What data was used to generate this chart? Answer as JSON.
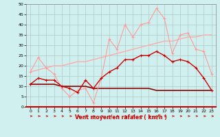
{
  "x": [
    0,
    1,
    2,
    3,
    4,
    5,
    6,
    7,
    8,
    9,
    10,
    11,
    12,
    13,
    14,
    15,
    16,
    17,
    18,
    19,
    20,
    21,
    22,
    23
  ],
  "line1_y": [
    17,
    24,
    19,
    16,
    9,
    5,
    8,
    9,
    2,
    14,
    33,
    28,
    40,
    34,
    40,
    41,
    48,
    43,
    26,
    35,
    36,
    28,
    27,
    16
  ],
  "line2_y": [
    11,
    14,
    13,
    13,
    10,
    9,
    7,
    13,
    9,
    14,
    17,
    19,
    23,
    23,
    25,
    25,
    27,
    25,
    22,
    23,
    22,
    19,
    14,
    8
  ],
  "line3_slope_y": [
    17,
    18,
    19,
    20,
    20,
    21,
    22,
    22,
    23,
    24,
    25,
    26,
    27,
    28,
    29,
    30,
    31,
    32,
    32,
    33,
    34,
    34,
    35,
    35
  ],
  "line4_slope_y": [
    11,
    11,
    11,
    11,
    10,
    10,
    10,
    10,
    9,
    9,
    9,
    9,
    9,
    9,
    9,
    9,
    8,
    8,
    8,
    8,
    8,
    8,
    8,
    8
  ],
  "bg_color": "#cff0ee",
  "grid_color": "#b0c8c8",
  "line1_color": "#ff9999",
  "line2_color": "#cc0000",
  "line3_color": "#ffaaaa",
  "line4_color": "#880000",
  "xlabel": "Vent moyen/en rafales ( km/h )",
  "ylim": [
    0,
    50
  ],
  "xlim": [
    -0.5,
    23.5
  ],
  "yticks": [
    0,
    5,
    10,
    15,
    20,
    25,
    30,
    35,
    40,
    45,
    50
  ],
  "xticks": [
    0,
    1,
    2,
    3,
    4,
    5,
    6,
    7,
    8,
    9,
    10,
    11,
    12,
    13,
    14,
    15,
    16,
    17,
    18,
    19,
    20,
    21,
    22,
    23
  ]
}
